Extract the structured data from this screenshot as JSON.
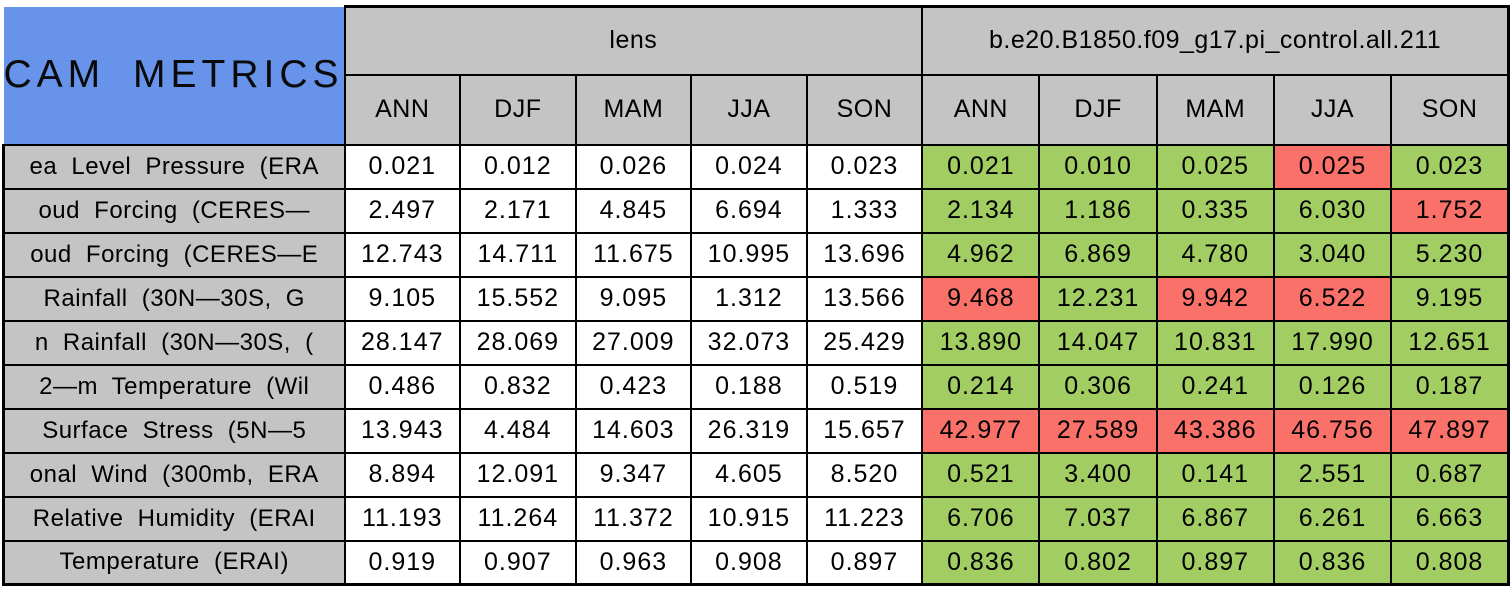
{
  "colors": {
    "header_blue": "#6794EA",
    "header_gray": "#C4C4C4",
    "cell_white": "#FFFFFF",
    "cell_green": "#A1CD63",
    "cell_red": "#FA716A",
    "border_black": "#000000"
  },
  "chart_data": {
    "type": "table",
    "title": "CAM METRICS",
    "column_groups": [
      "lens",
      "b.e20.B1850.f09_g17.pi_control.all.211"
    ],
    "seasons": [
      "ANN",
      "DJF",
      "MAM",
      "JJA",
      "SON"
    ],
    "rows": [
      {
        "label": "ea Level Pressure (ERA",
        "lens": [
          "0.021",
          "0.012",
          "0.026",
          "0.024",
          "0.023"
        ],
        "control": [
          "0.021",
          "0.010",
          "0.025",
          "0.025",
          "0.023"
        ],
        "control_status": [
          "good",
          "good",
          "good",
          "bad",
          "good"
        ]
      },
      {
        "label": "oud Forcing (CERES—",
        "lens": [
          "2.497",
          "2.171",
          "4.845",
          "6.694",
          "1.333"
        ],
        "control": [
          "2.134",
          "1.186",
          "0.335",
          "6.030",
          "1.752"
        ],
        "control_status": [
          "good",
          "good",
          "good",
          "good",
          "bad"
        ]
      },
      {
        "label": "oud Forcing (CERES—E",
        "lens": [
          "12.743",
          "14.711",
          "11.675",
          "10.995",
          "13.696"
        ],
        "control": [
          "4.962",
          "6.869",
          "4.780",
          "3.040",
          "5.230"
        ],
        "control_status": [
          "good",
          "good",
          "good",
          "good",
          "good"
        ]
      },
      {
        "label": "Rainfall (30N—30S, G",
        "lens": [
          "9.105",
          "15.552",
          "9.095",
          "1.312",
          "13.566"
        ],
        "control": [
          "9.468",
          "12.231",
          "9.942",
          "6.522",
          "9.195"
        ],
        "control_status": [
          "bad",
          "good",
          "bad",
          "bad",
          "good"
        ]
      },
      {
        "label": "n Rainfall (30N—30S, (",
        "lens": [
          "28.147",
          "28.069",
          "27.009",
          "32.073",
          "25.429"
        ],
        "control": [
          "13.890",
          "14.047",
          "10.831",
          "17.990",
          "12.651"
        ],
        "control_status": [
          "good",
          "good",
          "good",
          "good",
          "good"
        ]
      },
      {
        "label": "2—m Temperature (Wil",
        "lens": [
          "0.486",
          "0.832",
          "0.423",
          "0.188",
          "0.519"
        ],
        "control": [
          "0.214",
          "0.306",
          "0.241",
          "0.126",
          "0.187"
        ],
        "control_status": [
          "good",
          "good",
          "good",
          "good",
          "good"
        ]
      },
      {
        "label": "Surface Stress (5N—5",
        "lens": [
          "13.943",
          "4.484",
          "14.603",
          "26.319",
          "15.657"
        ],
        "control": [
          "42.977",
          "27.589",
          "43.386",
          "46.756",
          "47.897"
        ],
        "control_status": [
          "bad",
          "bad",
          "bad",
          "bad",
          "bad"
        ]
      },
      {
        "label": "onal Wind (300mb, ERA",
        "lens": [
          "8.894",
          "12.091",
          "9.347",
          "4.605",
          "8.520"
        ],
        "control": [
          "0.521",
          "3.400",
          "0.141",
          "2.551",
          "0.687"
        ],
        "control_status": [
          "good",
          "good",
          "good",
          "good",
          "good"
        ]
      },
      {
        "label": "Relative Humidity (ERAI",
        "lens": [
          "11.193",
          "11.264",
          "11.372",
          "10.915",
          "11.223"
        ],
        "control": [
          "6.706",
          "7.037",
          "6.867",
          "6.261",
          "6.663"
        ],
        "control_status": [
          "good",
          "good",
          "good",
          "good",
          "good"
        ]
      },
      {
        "label": "Temperature (ERAI)",
        "lens": [
          "0.919",
          "0.907",
          "0.963",
          "0.908",
          "0.897"
        ],
        "control": [
          "0.836",
          "0.802",
          "0.897",
          "0.836",
          "0.808"
        ],
        "control_status": [
          "good",
          "good",
          "good",
          "good",
          "good"
        ]
      }
    ]
  }
}
